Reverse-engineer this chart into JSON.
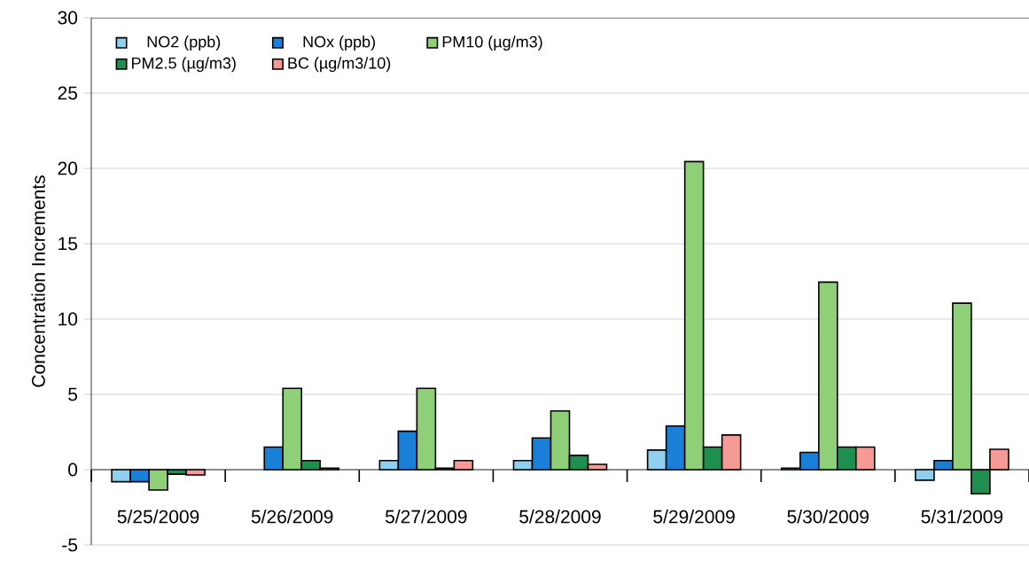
{
  "chart_data": {
    "type": "bar",
    "ylabel": "Concentration Increments",
    "categories": [
      "5/25/2009",
      "5/26/2009",
      "5/27/2009",
      "5/28/2009",
      "5/29/2009",
      "5/30/2009",
      "5/31/2009"
    ],
    "series": [
      {
        "name": "NO2 (ppb)",
        "color": "#8fd0f0",
        "values": [
          -0.8,
          null,
          0.6,
          0.6,
          1.3,
          0.1,
          -0.7
        ]
      },
      {
        "name": "NOx (ppb)",
        "color": "#1a7fd6",
        "values": [
          -0.8,
          1.5,
          2.55,
          2.1,
          2.9,
          1.15,
          0.6
        ]
      },
      {
        "name": "PM10 (µg/m3)",
        "color": "#8fcf78",
        "values": [
          -1.35,
          5.4,
          5.4,
          3.9,
          20.45,
          12.45,
          11.05
        ]
      },
      {
        "name": "PM2.5 (µg/m3)",
        "color": "#1f8f50",
        "values": [
          -0.3,
          0.6,
          0.1,
          0.95,
          1.5,
          1.5,
          -1.6
        ]
      },
      {
        "name": "BC (µg/m3/10)",
        "color": "#f59a96",
        "values": [
          -0.35,
          0.1,
          0.6,
          0.35,
          2.3,
          1.5,
          1.35
        ]
      }
    ],
    "ylim": [
      -5,
      30
    ],
    "yticks": [
      -5,
      0,
      5,
      10,
      15,
      20,
      25,
      30
    ],
    "grid": "y",
    "legend": "top left"
  }
}
